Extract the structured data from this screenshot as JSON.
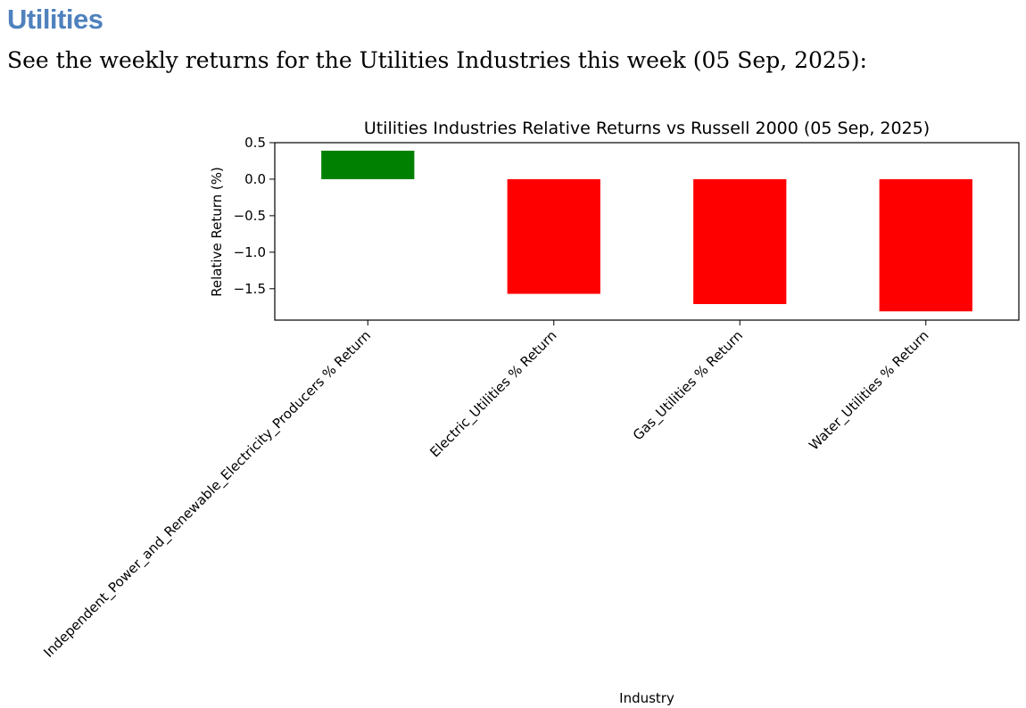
{
  "section": {
    "title": "Utilities",
    "intro": "See the weekly returns for the Utilities Industries this week (05 Sep, 2025):"
  },
  "chart_data": {
    "type": "bar",
    "title": "Utilities Industries Relative Returns vs Russell 2000 (05 Sep, 2025)",
    "xlabel": "Industry",
    "ylabel": "Relative Return (%)",
    "categories": [
      "Independent_Power_and_Renewable_Electricity_Producers % Return",
      "Electric_Utilities % Return",
      "Gas_Utilities % Return",
      "Water_Utilities % Return"
    ],
    "values": [
      0.39,
      -1.57,
      -1.71,
      -1.81
    ],
    "bar_colors": [
      "#008000",
      "#ff0000",
      "#ff0000",
      "#ff0000"
    ],
    "ylim": [
      -1.93,
      0.5
    ],
    "yticks": [
      0.5,
      0.0,
      -0.5,
      -1.0,
      -1.5
    ],
    "ytick_labels": [
      "0.5",
      "0.0",
      "−0.5",
      "−1.0",
      "−1.5"
    ],
    "grid": false,
    "legend": "none"
  }
}
